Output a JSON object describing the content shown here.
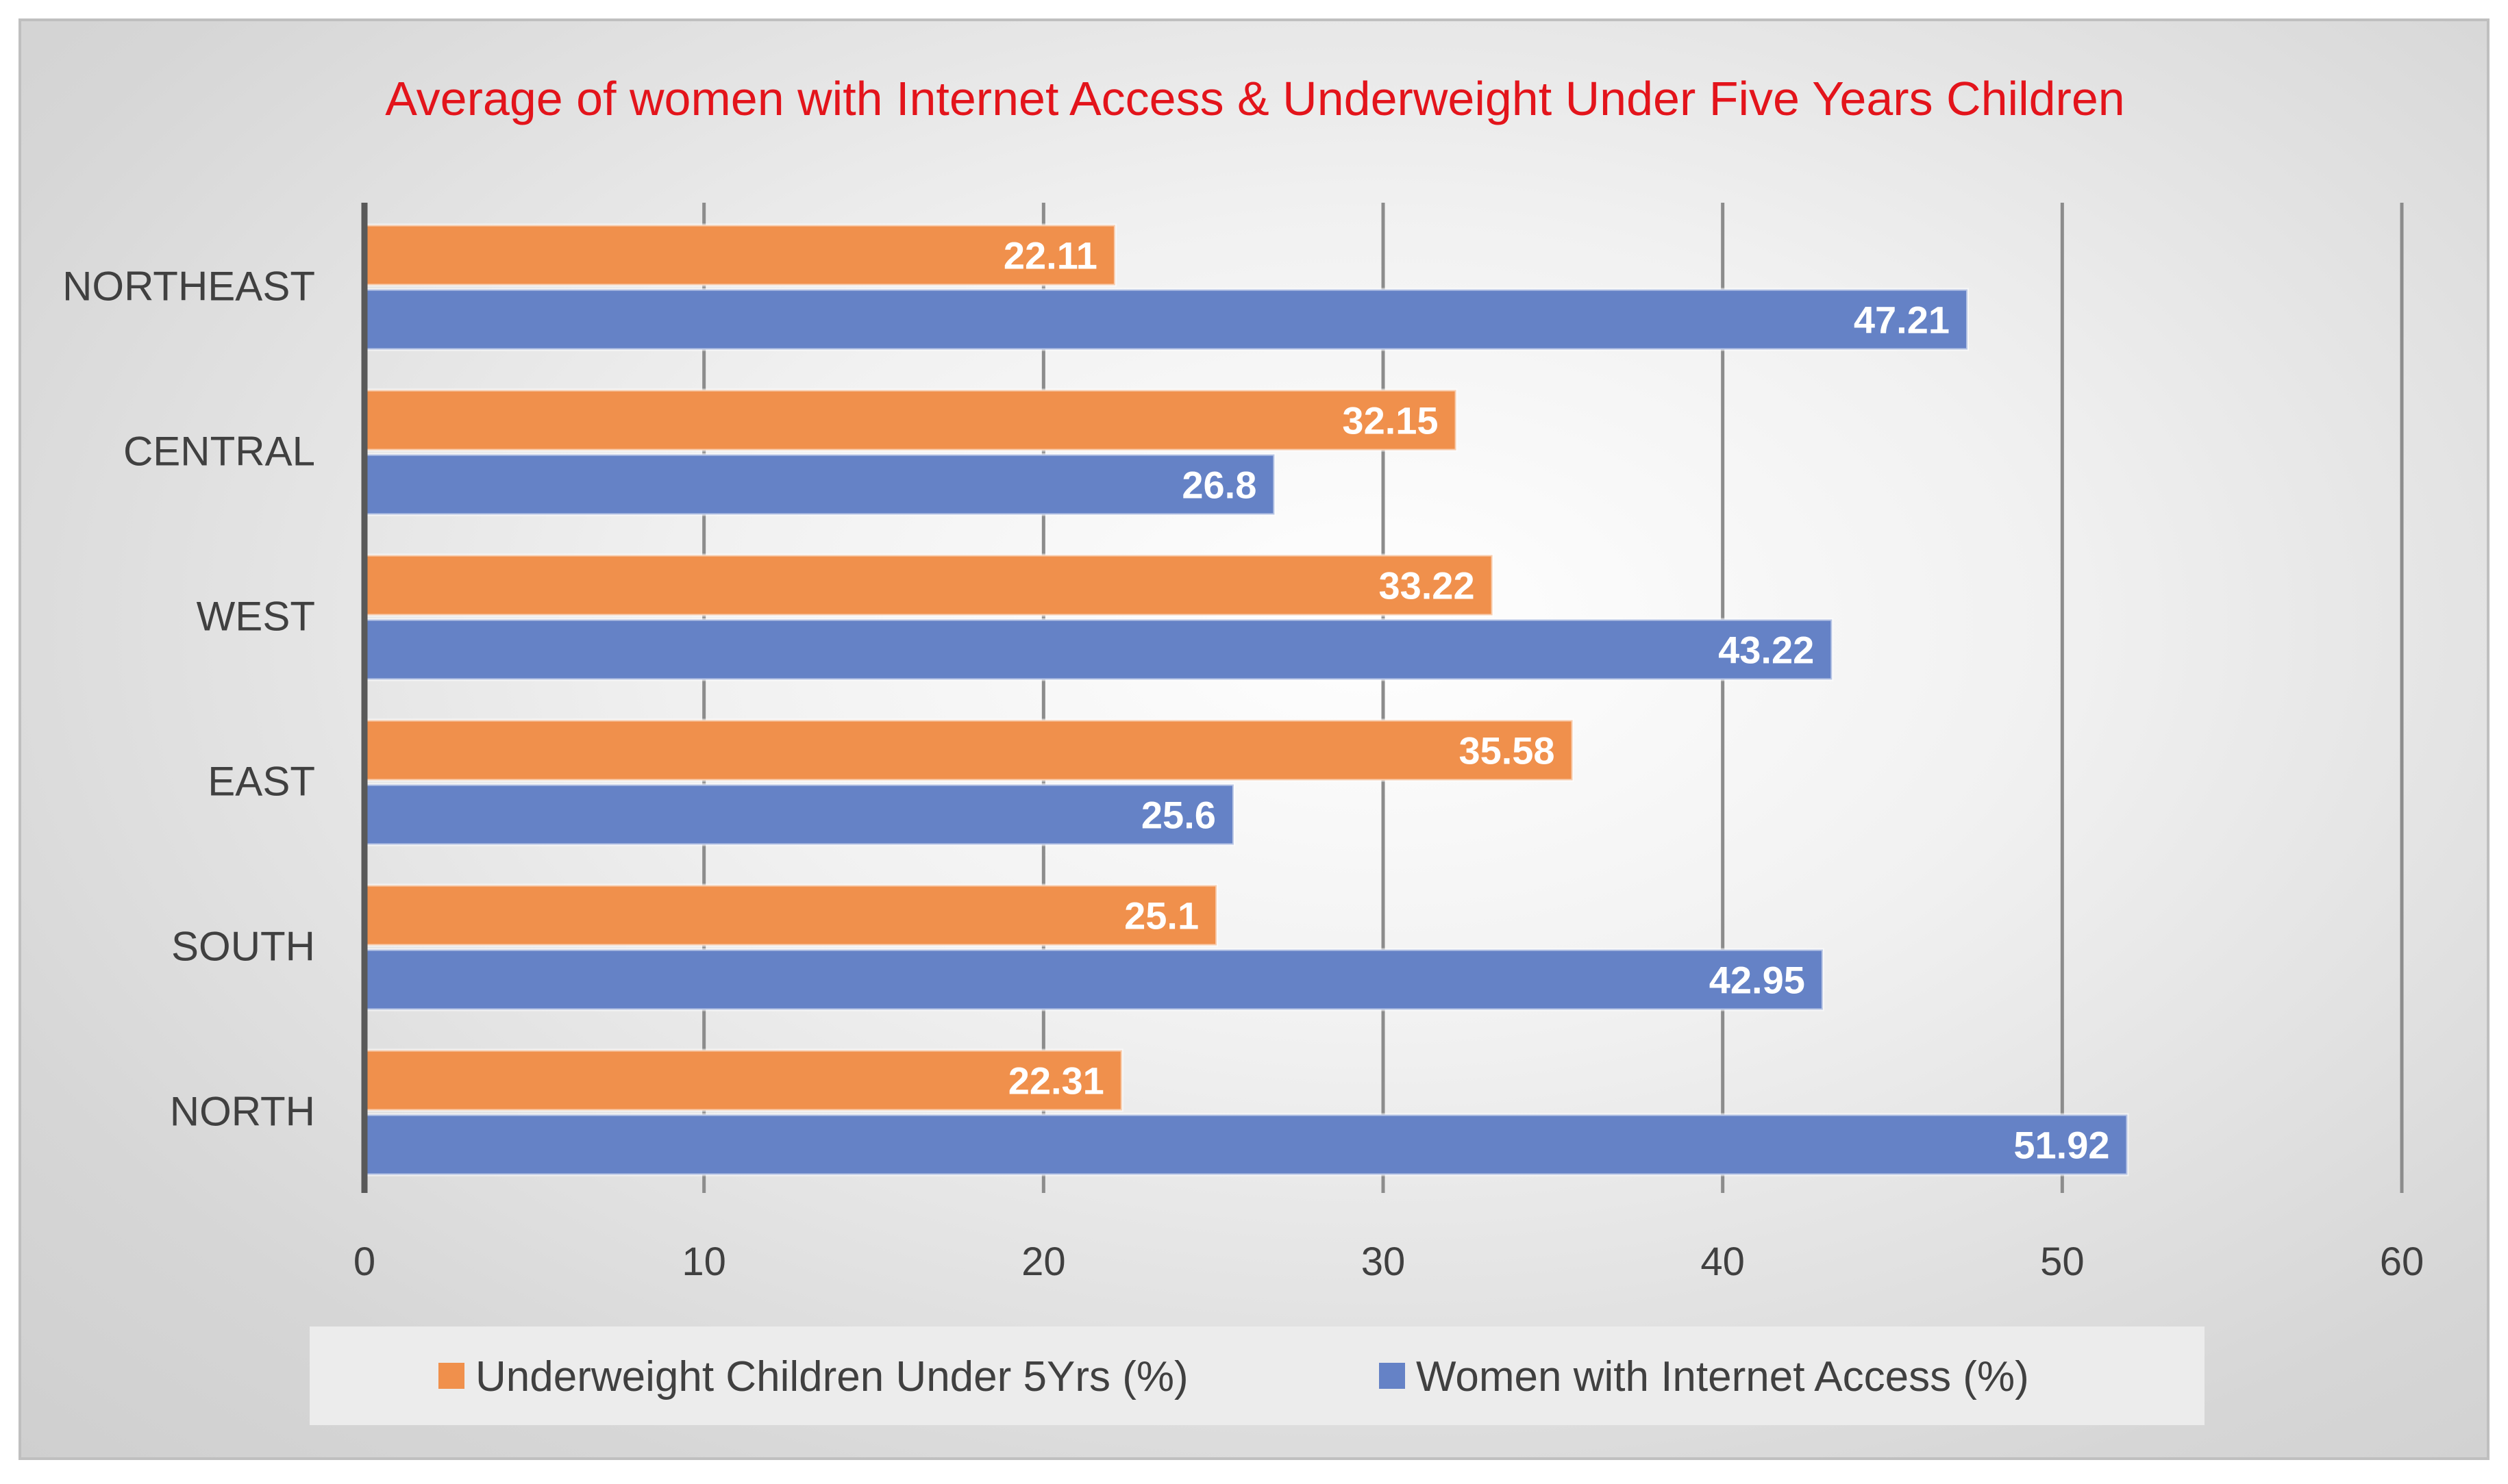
{
  "chart_data": {
    "type": "bar",
    "orientation": "horizontal",
    "title": "Average of women with Internet Access & Underweight Under Five Years Children",
    "categories": [
      "NORTHEAST",
      "CENTRAL",
      "WEST",
      "EAST",
      "SOUTH",
      "NORTH"
    ],
    "series": [
      {
        "name": "Underweight Children Under 5Yrs (%)",
        "color": "#f0904c",
        "values": [
          22.11,
          32.15,
          33.22,
          35.58,
          25.1,
          22.31
        ],
        "labels": [
          "22.11",
          "32.15",
          "33.22",
          "35.58",
          "25.1",
          "22.31"
        ]
      },
      {
        "name": "Women with Internet Access (%)",
        "color": "#6582c6",
        "values": [
          47.21,
          26.8,
          43.22,
          25.6,
          42.95,
          51.92
        ],
        "labels": [
          "47.21",
          "26.8",
          "43.22",
          "25.6",
          "42.95",
          "51.92"
        ]
      }
    ],
    "xlim": [
      0,
      60
    ],
    "xticks": [
      0,
      10,
      20,
      30,
      40,
      50,
      60
    ],
    "xtick_labels": [
      "0",
      "10",
      "20",
      "30",
      "40",
      "50",
      "60"
    ],
    "grid": true,
    "legend": "bottom",
    "xlabel": "",
    "ylabel": ""
  }
}
